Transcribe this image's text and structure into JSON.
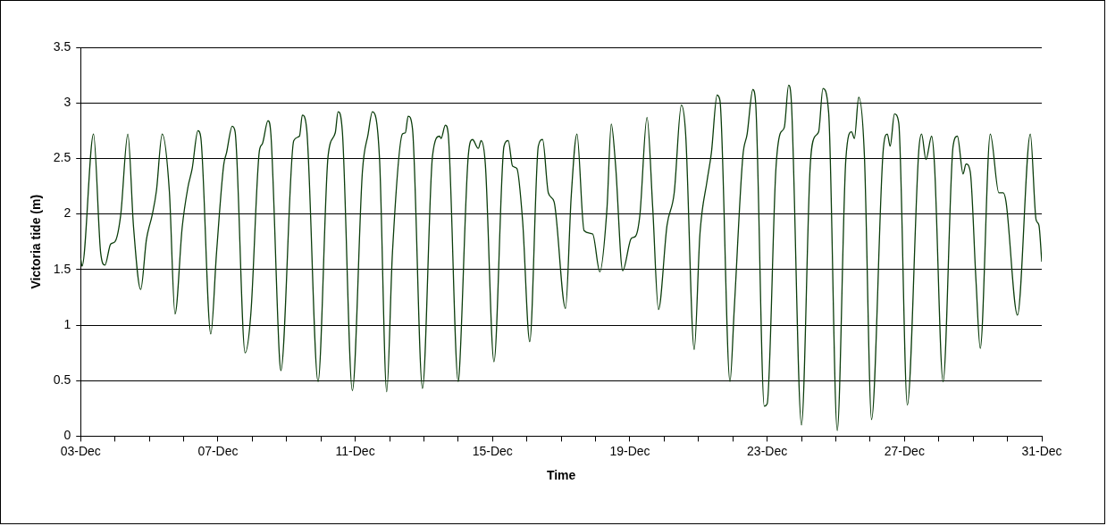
{
  "chart_data": {
    "type": "line",
    "xlabel": "Time",
    "ylabel": "Victoria tide (m)",
    "xlim": [
      "--12-03",
      "--12-31"
    ],
    "xticks": [
      {
        "value": "--12-03",
        "label": "03-Dec"
      },
      {
        "value": "--12-04",
        "label": null
      },
      {
        "value": "--12-05",
        "label": null
      },
      {
        "value": "--12-06",
        "label": null
      },
      {
        "value": "--12-07",
        "label": "07-Dec"
      },
      {
        "value": "--12-08",
        "label": null
      },
      {
        "value": "--12-09",
        "label": null
      },
      {
        "value": "--12-10",
        "label": null
      },
      {
        "value": "--12-11",
        "label": "11-Dec"
      },
      {
        "value": "--12-12",
        "label": null
      },
      {
        "value": "--12-13",
        "label": null
      },
      {
        "value": "--12-14",
        "label": null
      },
      {
        "value": "--12-15",
        "label": "15-Dec"
      },
      {
        "value": "--12-16",
        "label": null
      },
      {
        "value": "--12-17",
        "label": null
      },
      {
        "value": "--12-18",
        "label": null
      },
      {
        "value": "--12-19",
        "label": "19-Dec"
      },
      {
        "value": "--12-20",
        "label": null
      },
      {
        "value": "--12-21",
        "label": null
      },
      {
        "value": "--12-22",
        "label": null
      },
      {
        "value": "--12-23",
        "label": "23-Dec"
      },
      {
        "value": "--12-24",
        "label": null
      },
      {
        "value": "--12-25",
        "label": null
      },
      {
        "value": "--12-26",
        "label": null
      },
      {
        "value": "--12-27",
        "label": "27-Dec"
      },
      {
        "value": "--12-28",
        "label": null
      },
      {
        "value": "--12-29",
        "label": null
      },
      {
        "value": "--12-30",
        "label": null
      },
      {
        "value": "--12-31",
        "label": "31-Dec"
      }
    ],
    "ylim": [
      0,
      3.5
    ],
    "yticks": [
      0,
      0.5,
      1,
      1.5,
      2,
      2.5,
      3,
      3.5
    ],
    "grid": "y",
    "legend": false,
    "marker": "none",
    "line_style": "solid",
    "x": [
      "--12-03T00:00",
      "--12-03T01:00",
      "--12-03T09:00",
      "--12-03T14:00",
      "--12-03T17:00",
      "--12-03T21:00",
      "--12-04T00:00",
      "--12-04T04:00",
      "--12-04T09:00",
      "--12-04T13:00",
      "--12-04T18:00",
      "--12-04T22:00",
      "--12-05T02:00",
      "--12-05T05:00",
      "--12-05T09:00",
      "--12-05T14:00",
      "--12-05T18:00",
      "--12-05T23:00",
      "--12-06T03:00",
      "--12-06T06:00",
      "--12-06T10:00",
      "--12-06T12:00",
      "--12-06T19:00",
      "--12-06T23:00",
      "--12-07T04:00",
      "--12-07T06:00",
      "--12-07T10:00",
      "--12-07T12:00",
      "--12-07T19:00",
      "--12-07T23:00",
      "--12-08T05:00",
      "--12-08T07:00",
      "--12-08T11:00",
      "--12-08T13:00",
      "--12-08T19:00",
      "--12-08T20:00",
      "--12-09T05:00",
      "--12-09T09:00",
      "--12-09T11:00",
      "--12-09T14:00",
      "--12-09T22:00",
      "--12-10T05:00",
      "--12-10T10:00",
      "--12-10T12:00",
      "--12-10T15:00",
      "--12-10T22:00",
      "--12-11T05:00",
      "--12-11T09:00",
      "--12-11T12:00",
      "--12-11T17:00",
      "--12-11T22:00",
      "--12-12T02:00",
      "--12-12T09:00",
      "--12-12T11:00",
      "--12-12T13:00",
      "--12-12T16:00",
      "--12-12T23:00",
      "--12-13T06:00",
      "--12-13T11:00",
      "--12-13T12:00",
      "--12-13T15:00",
      "--12-13T17:00",
      "--12-14T00:00",
      "--12-14T01:00",
      "--12-14T07:00",
      "--12-14T10:00",
      "--12-14T14:00",
      "--12-14T16:00",
      "--12-14T19:00",
      "--12-15T01:00",
      "--12-15T08:00",
      "--12-15T11:00",
      "--12-15T14:00",
      "--12-15T17:00",
      "--12-15T21:00",
      "--12-16T02:00",
      "--12-16T08:00",
      "--12-16T11:00",
      "--12-16T15:00",
      "--12-16T19:00",
      "--12-17T03:00",
      "--12-17T07:00",
      "--12-17T11:00",
      "--12-17T16:00",
      "--12-17T22:00",
      "--12-18T03:00",
      "--12-18T08:00",
      "--12-18T11:00",
      "--12-18T14:00",
      "--12-18T19:00",
      "--12-19T01:00",
      "--12-19T04:00",
      "--12-19T07:00",
      "--12-19T12:00",
      "--12-19T16:00",
      "--12-19T20:00",
      "--12-20T02:00",
      "--12-20T07:00",
      "--12-20T12:00",
      "--12-20T15:00",
      "--12-20T21:00",
      "--12-21T01:00",
      "--12-21T06:00",
      "--12-21T09:00",
      "--12-21T13:00",
      "--12-21T15:00",
      "--12-21T22:00",
      "--12-22T01:00",
      "--12-22T07:00",
      "--12-22T10:00",
      "--12-22T14:00",
      "--12-22T16:00",
      "--12-22T22:00",
      "--12-23T00:00",
      "--12-23T06:00",
      "--12-23T09:00",
      "--12-23T12:00",
      "--12-23T15:00",
      "--12-23T17:00",
      "--12-24T00:00",
      "--12-24T06:00",
      "--12-24T09:00",
      "--12-24T12:00",
      "--12-24T15:00",
      "--12-24T19:00",
      "--12-25T01:00",
      "--12-25T07:00",
      "--12-25T11:00",
      "--12-25T13:00",
      "--12-25T16:00",
      "--12-25T20:00",
      "--12-26T01:00",
      "--12-26T09:00",
      "--12-26T12:00",
      "--12-26T14:00",
      "--12-26T17:00",
      "--12-26T20:00",
      "--12-27T02:00",
      "--12-27T10:00",
      "--12-27T12:00",
      "--12-27T15:00",
      "--12-27T19:00",
      "--12-27T21:00",
      "--12-28T03:00",
      "--12-28T10:00",
      "--12-28T13:00",
      "--12-28T17:00",
      "--12-28T19:00",
      "--12-28T22:00",
      "--12-29T02:00",
      "--12-29T05:00",
      "--12-29T12:00",
      "--12-29T18:00",
      "--12-29T21:00",
      "--12-29T23:00",
      "--12-30T07:00",
      "--12-30T16:00",
      "--12-30T20:00",
      "--12-30T22:00",
      "--12-31T00:00"
    ],
    "series": [
      {
        "color": "#0b3d0b",
        "values": [
          1.6,
          1.53,
          2.72,
          1.65,
          1.54,
          1.73,
          1.75,
          1.99,
          2.72,
          1.88,
          1.32,
          1.77,
          1.99,
          2.21,
          2.72,
          2.21,
          1.1,
          1.88,
          2.24,
          2.41,
          2.75,
          2.69,
          0.92,
          1.65,
          2.44,
          2.55,
          2.79,
          2.74,
          0.75,
          1.1,
          2.57,
          2.63,
          2.84,
          2.72,
          0.71,
          0.59,
          2.66,
          2.7,
          2.89,
          2.77,
          0.49,
          2.52,
          2.73,
          2.92,
          2.74,
          0.41,
          2.38,
          2.72,
          2.92,
          2.49,
          0.4,
          1.65,
          2.72,
          2.73,
          2.88,
          2.77,
          0.43,
          2.52,
          2.7,
          2.68,
          2.8,
          2.72,
          0.49,
          0.63,
          2.52,
          2.67,
          2.59,
          2.66,
          2.44,
          0.67,
          2.61,
          2.66,
          2.43,
          2.41,
          1.94,
          0.85,
          2.61,
          2.67,
          2.19,
          2.11,
          1.15,
          2.16,
          2.72,
          1.85,
          1.82,
          1.48,
          2.05,
          2.81,
          2.44,
          1.49,
          1.78,
          1.8,
          1.99,
          2.87,
          2.05,
          1.14,
          1.9,
          2.19,
          2.98,
          2.72,
          0.78,
          1.82,
          2.3,
          2.55,
          3.07,
          3.02,
          0.49,
          1.15,
          2.52,
          2.72,
          3.12,
          2.99,
          0.27,
          0.29,
          2.38,
          2.72,
          2.78,
          3.16,
          2.99,
          0.1,
          2.41,
          2.69,
          2.74,
          3.13,
          2.91,
          0.05,
          2.49,
          2.74,
          2.68,
          3.05,
          2.52,
          0.15,
          2.55,
          2.72,
          2.61,
          2.9,
          2.82,
          0.28,
          2.57,
          2.72,
          2.49,
          2.7,
          2.44,
          0.49,
          2.61,
          2.7,
          2.36,
          2.45,
          2.38,
          1.4,
          0.79,
          2.72,
          2.19,
          2.19,
          2.11,
          1.09,
          2.72,
          1.95,
          1.9,
          1.57
        ]
      }
    ]
  }
}
